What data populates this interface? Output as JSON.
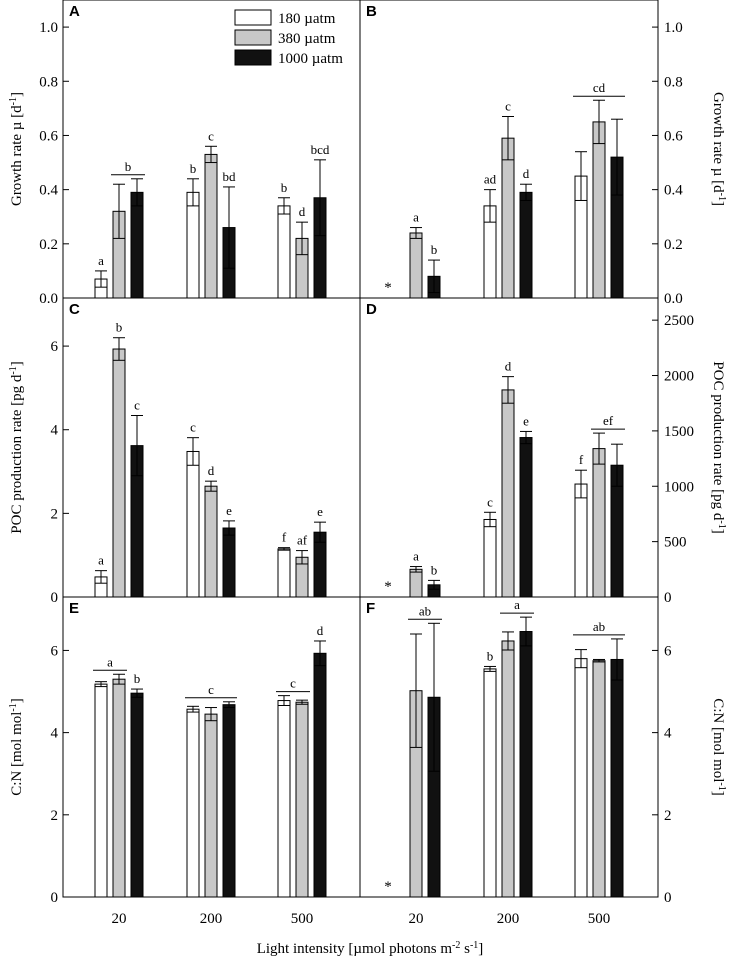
{
  "figure": {
    "xlabel": "Light intensity [µmol photons m-2 s-1]",
    "xlabel_parts": {
      "pre": "Light intensity [µmol photons m",
      "sup1": "-2",
      "mid": " s",
      "sup2": "-1",
      "post": "]"
    },
    "legend": [
      {
        "label": "180 µatm",
        "color": "#ffffff"
      },
      {
        "label": "380 µatm",
        "color": "#c8c8c8"
      },
      {
        "label": "1000 µatm",
        "color": "#111111"
      }
    ],
    "asterisk": "*"
  },
  "chart_data": [
    {
      "id": "A",
      "type": "bar",
      "letter": "A",
      "title": "",
      "xlabel": "",
      "ylabel": "Growth rate µ [d-1]",
      "ylabel_parts": {
        "pre": "Growth rate µ [d",
        "sup": "-1",
        "post": "]"
      },
      "ylabel_side": "left",
      "ylim": [
        0,
        1.1
      ],
      "yticks": [
        "0.0",
        "0.2",
        "0.4",
        "0.6",
        "0.8",
        "1.0"
      ],
      "categories": [
        "20",
        "200",
        "500"
      ],
      "series": [
        {
          "name": "180 µatm",
          "values": [
            0.07,
            0.39,
            0.34
          ],
          "errors": [
            0.03,
            0.05,
            0.03
          ]
        },
        {
          "name": "380 µatm",
          "values": [
            0.32,
            0.53,
            0.22
          ],
          "errors": [
            0.1,
            0.03,
            0.06
          ]
        },
        {
          "name": "1000 µatm",
          "values": [
            0.39,
            0.26,
            0.37
          ],
          "errors": [
            0.05,
            0.15,
            0.14
          ]
        }
      ],
      "sig_labels": [
        {
          "cat": 0,
          "series": [
            0
          ],
          "text": "a"
        },
        {
          "cat": 0,
          "series": [
            1,
            2
          ],
          "text": "b"
        },
        {
          "cat": 1,
          "series": [
            0
          ],
          "text": "b"
        },
        {
          "cat": 1,
          "series": [
            1
          ],
          "text": "c"
        },
        {
          "cat": 1,
          "series": [
            2
          ],
          "text": "bd"
        },
        {
          "cat": 2,
          "series": [
            0
          ],
          "text": "b"
        },
        {
          "cat": 2,
          "series": [
            1
          ],
          "text": "d"
        },
        {
          "cat": 2,
          "series": [
            2
          ],
          "text": "bcd"
        }
      ],
      "missing": []
    },
    {
      "id": "B",
      "type": "bar",
      "letter": "B",
      "title": "",
      "xlabel": "",
      "ylabel": "Growth rate µ [d-1]",
      "ylabel_parts": {
        "pre": "Growth rate µ [d",
        "sup": "-1",
        "post": "]"
      },
      "ylabel_side": "right",
      "ylim": [
        0,
        1.1
      ],
      "yticks": [
        "0.0",
        "0.2",
        "0.4",
        "0.6",
        "0.8",
        "1.0"
      ],
      "categories": [
        "20",
        "200",
        "500"
      ],
      "series": [
        {
          "name": "180 µatm",
          "values": [
            null,
            0.34,
            0.45
          ],
          "errors": [
            null,
            0.06,
            0.09
          ]
        },
        {
          "name": "380 µatm",
          "values": [
            0.24,
            0.59,
            0.65
          ],
          "errors": [
            0.02,
            0.08,
            0.08
          ]
        },
        {
          "name": "1000 µatm",
          "values": [
            0.08,
            0.39,
            0.52
          ],
          "errors": [
            0.06,
            0.03,
            0.14
          ]
        }
      ],
      "sig_labels": [
        {
          "cat": 0,
          "series": [
            1
          ],
          "text": "a"
        },
        {
          "cat": 0,
          "series": [
            2
          ],
          "text": "b"
        },
        {
          "cat": 1,
          "series": [
            0
          ],
          "text": "ad"
        },
        {
          "cat": 1,
          "series": [
            1
          ],
          "text": "c"
        },
        {
          "cat": 1,
          "series": [
            2
          ],
          "text": "d"
        },
        {
          "cat": 2,
          "series": [
            0,
            1,
            2
          ],
          "text": "cd"
        }
      ],
      "missing": [
        {
          "cat": 0,
          "series": 0
        }
      ]
    },
    {
      "id": "C",
      "type": "bar",
      "letter": "C",
      "title": "",
      "xlabel": "",
      "ylabel": "POC production rate [pg d-1]",
      "ylabel_parts": {
        "pre": "POC production rate [pg d",
        "sup": "-1",
        "post": "]"
      },
      "ylabel_side": "left",
      "ylim": [
        0,
        7.15
      ],
      "yticks": [
        "0",
        "2",
        "4",
        "6"
      ],
      "categories": [
        "20",
        "200",
        "500"
      ],
      "series": [
        {
          "name": "180 µatm",
          "values": [
            0.48,
            3.48,
            1.15
          ],
          "errors": [
            0.15,
            0.33,
            0.03
          ]
        },
        {
          "name": "380 µatm",
          "values": [
            5.93,
            2.65,
            0.95
          ],
          "errors": [
            0.27,
            0.12,
            0.16
          ]
        },
        {
          "name": "1000 µatm",
          "values": [
            3.62,
            1.65,
            1.55
          ],
          "errors": [
            0.72,
            0.17,
            0.24
          ]
        }
      ],
      "sig_labels": [
        {
          "cat": 0,
          "series": [
            0
          ],
          "text": "a"
        },
        {
          "cat": 0,
          "series": [
            1
          ],
          "text": "b"
        },
        {
          "cat": 0,
          "series": [
            2
          ],
          "text": "c"
        },
        {
          "cat": 1,
          "series": [
            0
          ],
          "text": "c"
        },
        {
          "cat": 1,
          "series": [
            1
          ],
          "text": "d"
        },
        {
          "cat": 1,
          "series": [
            2
          ],
          "text": "e"
        },
        {
          "cat": 2,
          "series": [
            0
          ],
          "text": "f"
        },
        {
          "cat": 2,
          "series": [
            1
          ],
          "text": "af"
        },
        {
          "cat": 2,
          "series": [
            2
          ],
          "text": "e"
        }
      ],
      "missing": []
    },
    {
      "id": "D",
      "type": "bar",
      "letter": "D",
      "title": "",
      "xlabel": "",
      "ylabel": "POC production rate [pg d-1]",
      "ylabel_parts": {
        "pre": "POC production rate [pg d",
        "sup": "-1",
        "post": "]"
      },
      "ylabel_side": "right",
      "ylim": [
        0,
        2700
      ],
      "yticks": [
        "0",
        "500",
        "1000",
        "1500",
        "2000",
        "2500"
      ],
      "categories": [
        "20",
        "200",
        "500"
      ],
      "series": [
        {
          "name": "180 µatm",
          "values": [
            null,
            700,
            1020
          ],
          "errors": [
            null,
            65,
            125
          ]
        },
        {
          "name": "380 µatm",
          "values": [
            250,
            1870,
            1340
          ],
          "errors": [
            25,
            120,
            140
          ]
        },
        {
          "name": "1000 µatm",
          "values": [
            110,
            1440,
            1190
          ],
          "errors": [
            40,
            55,
            190
          ]
        }
      ],
      "sig_labels": [
        {
          "cat": 0,
          "series": [
            1
          ],
          "text": "a"
        },
        {
          "cat": 0,
          "series": [
            2
          ],
          "text": "b"
        },
        {
          "cat": 1,
          "series": [
            0
          ],
          "text": "c"
        },
        {
          "cat": 1,
          "series": [
            1
          ],
          "text": "d"
        },
        {
          "cat": 1,
          "series": [
            2
          ],
          "text": "e"
        },
        {
          "cat": 2,
          "series": [
            0
          ],
          "text": "f"
        },
        {
          "cat": 2,
          "series": [
            1,
            2
          ],
          "text": "ef"
        }
      ],
      "missing": [
        {
          "cat": 0,
          "series": 0
        }
      ]
    },
    {
      "id": "E",
      "type": "bar",
      "letter": "E",
      "title": "",
      "xlabel": "",
      "ylabel": "C:N [mol mol-1]",
      "ylabel_parts": {
        "pre": "C:N [mol mol",
        "sup": "-1",
        "post": "]"
      },
      "ylabel_side": "left",
      "ylim": [
        0,
        7.3
      ],
      "yticks": [
        "0",
        "2",
        "4",
        "6"
      ],
      "categories": [
        "20",
        "200",
        "500"
      ],
      "series": [
        {
          "name": "180 µatm",
          "values": [
            5.18,
            4.57,
            4.78
          ],
          "errors": [
            0.06,
            0.07,
            0.12
          ]
        },
        {
          "name": "380 µatm",
          "values": [
            5.3,
            4.45,
            4.74
          ],
          "errors": [
            0.12,
            0.16,
            0.05
          ]
        },
        {
          "name": "1000 µatm",
          "values": [
            4.96,
            4.68,
            5.93
          ],
          "errors": [
            0.1,
            0.07,
            0.3
          ]
        }
      ],
      "sig_labels": [
        {
          "cat": 0,
          "series": [
            0,
            1
          ],
          "text": "a"
        },
        {
          "cat": 0,
          "series": [
            2
          ],
          "text": "b"
        },
        {
          "cat": 1,
          "series": [
            0,
            1,
            2
          ],
          "text": "c"
        },
        {
          "cat": 2,
          "series": [
            0,
            1
          ],
          "text": "c"
        },
        {
          "cat": 2,
          "series": [
            2
          ],
          "text": "d"
        }
      ],
      "missing": []
    },
    {
      "id": "F",
      "type": "bar",
      "letter": "F",
      "title": "",
      "xlabel": "",
      "ylabel": "C:N [mol mol-1]",
      "ylabel_parts": {
        "pre": "C:N [mol mol",
        "sup": "-1",
        "post": "]"
      },
      "ylabel_side": "right",
      "ylim": [
        0,
        7.3
      ],
      "yticks": [
        "0",
        "2",
        "4",
        "6"
      ],
      "categories": [
        "20",
        "200",
        "500"
      ],
      "series": [
        {
          "name": "180 µatm",
          "values": [
            null,
            5.55,
            5.8
          ],
          "errors": [
            null,
            0.06,
            0.22
          ]
        },
        {
          "name": "380 µatm",
          "values": [
            5.02,
            6.23,
            5.75
          ],
          "errors": [
            1.38,
            0.22,
            0.03
          ]
        },
        {
          "name": "1000 µatm",
          "values": [
            4.86,
            6.46,
            5.78
          ],
          "errors": [
            1.8,
            0.35,
            0.5
          ]
        }
      ],
      "sig_labels": [
        {
          "cat": 0,
          "series": [
            1,
            2
          ],
          "text": "ab"
        },
        {
          "cat": 1,
          "series": [
            0
          ],
          "text": "b"
        },
        {
          "cat": 1,
          "series": [
            1,
            2
          ],
          "text": "a"
        },
        {
          "cat": 2,
          "series": [
            0,
            1,
            2
          ],
          "text": "ab"
        }
      ],
      "missing": [
        {
          "cat": 0,
          "series": 0
        }
      ]
    }
  ]
}
